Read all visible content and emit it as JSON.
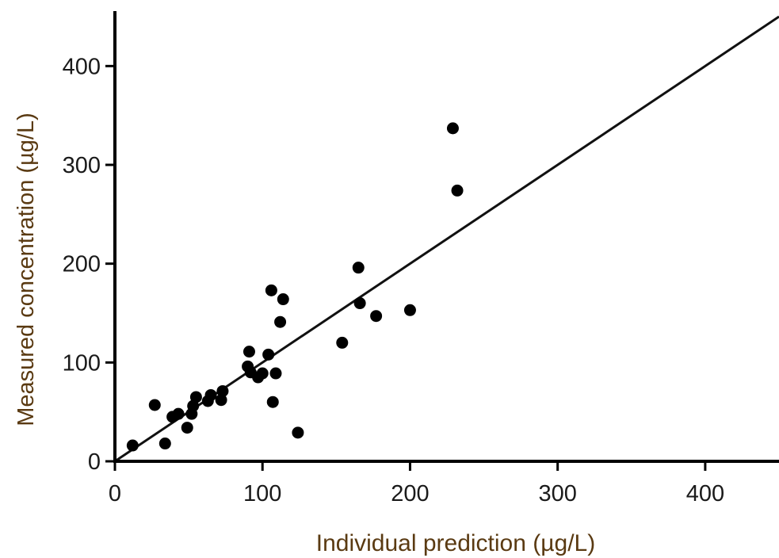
{
  "chart_data": {
    "type": "scatter",
    "title": "",
    "xlabel": "Individual prediction (µg/L)",
    "ylabel": "Measured concentration (µg/L)",
    "xlim": [
      0,
      450
    ],
    "ylim": [
      0,
      450
    ],
    "xticks": [
      0,
      100,
      200,
      300,
      400
    ],
    "yticks": [
      0,
      100,
      200,
      300,
      400
    ],
    "grid": false,
    "reference_line": {
      "type": "identity",
      "slope": 1,
      "intercept": 0
    },
    "points": [
      {
        "x": 12,
        "y": 16
      },
      {
        "x": 27,
        "y": 57
      },
      {
        "x": 34,
        "y": 18
      },
      {
        "x": 39,
        "y": 45
      },
      {
        "x": 43,
        "y": 48
      },
      {
        "x": 49,
        "y": 34
      },
      {
        "x": 52,
        "y": 48
      },
      {
        "x": 53,
        "y": 56
      },
      {
        "x": 55,
        "y": 65
      },
      {
        "x": 63,
        "y": 61
      },
      {
        "x": 65,
        "y": 67
      },
      {
        "x": 72,
        "y": 62
      },
      {
        "x": 73,
        "y": 71
      },
      {
        "x": 90,
        "y": 96
      },
      {
        "x": 91,
        "y": 111
      },
      {
        "x": 92,
        "y": 90
      },
      {
        "x": 97,
        "y": 85
      },
      {
        "x": 100,
        "y": 89
      },
      {
        "x": 104,
        "y": 108
      },
      {
        "x": 106,
        "y": 173
      },
      {
        "x": 107,
        "y": 60
      },
      {
        "x": 109,
        "y": 89
      },
      {
        "x": 112,
        "y": 141
      },
      {
        "x": 114,
        "y": 164
      },
      {
        "x": 124,
        "y": 29
      },
      {
        "x": 154,
        "y": 120
      },
      {
        "x": 165,
        "y": 196
      },
      {
        "x": 166,
        "y": 160
      },
      {
        "x": 177,
        "y": 147
      },
      {
        "x": 200,
        "y": 153
      },
      {
        "x": 229,
        "y": 337
      },
      {
        "x": 232,
        "y": 274
      }
    ],
    "colors": {
      "points": "#000000",
      "axis": "#000000",
      "line": "#111111",
      "label_text": "#5a3a12"
    }
  }
}
